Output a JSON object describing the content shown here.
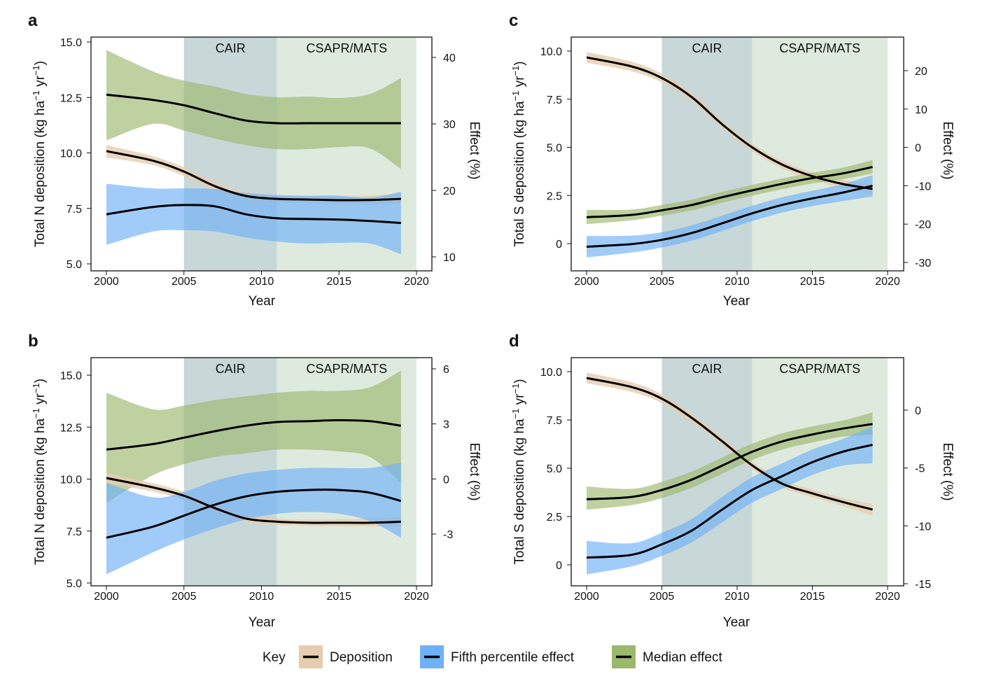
{
  "colors": {
    "deposition": "#e6cdb0",
    "fifth_percentile": "#6fb1f7",
    "median": "#9cb86e",
    "cair_region": "#c8d8d8",
    "csapr_region": "#dfeadf",
    "line": "#000000"
  },
  "legend": {
    "title": "Key",
    "items": [
      {
        "label": "Deposition",
        "key": "deposition"
      },
      {
        "label": "Fifth percentile effect",
        "key": "fifth_percentile"
      },
      {
        "label": "Median effect",
        "key": "median"
      }
    ]
  },
  "chart_data": [
    {
      "panel": "a",
      "type": "line",
      "xlabel": "Year",
      "ylabel_parts": [
        "Total N deposition (kg ha",
        "−1",
        " yr",
        "−1",
        ")"
      ],
      "y2label": "Effect (%)",
      "xlim": [
        2000,
        2020
      ],
      "ylim": [
        5,
        15
      ],
      "y2lim": [
        10,
        40
      ],
      "xticks": [
        "2000",
        "2005",
        "2010",
        "2015",
        "2020"
      ],
      "yticks": [
        "5.0",
        "7.5",
        "10.0",
        "12.5",
        "15.0"
      ],
      "y2ticks": [
        "10",
        "20",
        "30",
        "40"
      ],
      "regions": [
        {
          "label": "CAIR",
          "from": 2005,
          "to": 2011
        },
        {
          "label": "CSAPR/MATS",
          "from": 2011,
          "to": 2020
        }
      ],
      "x": [
        2000,
        2003,
        2005,
        2007,
        2009,
        2011,
        2013,
        2015,
        2017,
        2019
      ],
      "series": [
        {
          "key": "median",
          "axis": "right",
          "y": [
            34.4,
            33.6,
            32.8,
            31.6,
            30.5,
            30.1,
            30.1,
            30.1,
            30.1,
            30.1
          ],
          "lower": [
            27.5,
            30.0,
            29.0,
            27.8,
            26.8,
            26.2,
            26.2,
            26.5,
            26.3,
            23.2
          ],
          "upper": [
            41.1,
            37.9,
            36.5,
            35.6,
            34.5,
            34.0,
            34.1,
            33.9,
            34.5,
            36.9
          ]
        },
        {
          "key": "deposition",
          "axis": "left",
          "y": [
            10.08,
            9.65,
            9.16,
            8.5,
            8.06,
            7.93,
            7.9,
            7.87,
            7.88,
            7.93
          ],
          "lower": [
            9.8,
            9.45,
            8.96,
            8.3,
            7.88,
            7.78,
            7.75,
            7.7,
            7.68,
            7.72
          ],
          "upper": [
            10.35,
            9.85,
            9.36,
            8.7,
            8.24,
            8.08,
            8.05,
            8.04,
            8.08,
            8.18
          ]
        },
        {
          "key": "fifth_percentile",
          "axis": "right",
          "y": [
            16.4,
            17.5,
            17.8,
            17.6,
            16.4,
            15.8,
            15.7,
            15.6,
            15.4,
            15.1
          ],
          "lower": [
            11.8,
            13.8,
            14.0,
            13.8,
            12.9,
            12.3,
            12.0,
            12.1,
            12.0,
            10.4
          ],
          "upper": [
            21.0,
            20.3,
            20.3,
            20.2,
            19.6,
            19.3,
            19.2,
            19.2,
            18.9,
            19.8
          ]
        }
      ]
    },
    {
      "panel": "b",
      "type": "line",
      "xlabel": "Year",
      "ylabel_parts": [
        "Total N deposition (kg ha",
        "−1",
        " yr",
        "−1",
        ")"
      ],
      "y2label": "Effect (%)",
      "xlim": [
        2000,
        2020
      ],
      "ylim": [
        5,
        15
      ],
      "y2lim": [
        -3,
        6
      ],
      "xticks": [
        "2000",
        "2005",
        "2010",
        "2015",
        "2020"
      ],
      "yticks": [
        "5.0",
        "7.5",
        "10.0",
        "12.5",
        "15.0"
      ],
      "y2ticks": [
        "-3",
        "0",
        "3",
        "6"
      ],
      "regions": [
        {
          "label": "CAIR",
          "from": 2005,
          "to": 2011
        },
        {
          "label": "CSAPR/MATS",
          "from": 2011,
          "to": 2020
        }
      ],
      "x": [
        2000,
        2003,
        2005,
        2007,
        2009,
        2011,
        2013,
        2015,
        2017,
        2019
      ],
      "series": [
        {
          "key": "median",
          "axis": "right",
          "y": [
            1.6,
            1.9,
            2.25,
            2.6,
            2.9,
            3.1,
            3.15,
            3.2,
            3.15,
            2.9
          ],
          "lower": [
            -1.3,
            0.2,
            0.8,
            1.2,
            1.4,
            1.6,
            1.6,
            1.5,
            1.2,
            -0.2
          ],
          "upper": [
            4.7,
            3.8,
            4.0,
            4.3,
            4.5,
            4.7,
            4.8,
            4.8,
            5.0,
            5.9
          ]
        },
        {
          "key": "deposition",
          "axis": "left",
          "y": [
            10.05,
            9.6,
            9.2,
            8.6,
            8.1,
            7.95,
            7.9,
            7.9,
            7.9,
            7.95
          ],
          "lower": [
            9.8,
            9.4,
            9.0,
            8.4,
            7.93,
            7.8,
            7.75,
            7.73,
            7.72,
            7.72
          ],
          "upper": [
            10.3,
            9.8,
            9.4,
            8.8,
            8.27,
            8.1,
            8.05,
            8.07,
            8.1,
            8.2
          ]
        },
        {
          "key": "fifth_percentile",
          "axis": "right",
          "y": [
            -3.2,
            -2.6,
            -2.0,
            -1.4,
            -0.95,
            -0.7,
            -0.6,
            -0.6,
            -0.75,
            -1.2
          ],
          "lower": [
            -5.2,
            -4.0,
            -3.3,
            -2.7,
            -2.2,
            -1.9,
            -1.8,
            -1.9,
            -2.3,
            -3.2
          ],
          "upper": [
            -0.2,
            -1.0,
            -0.7,
            -0.1,
            0.3,
            0.5,
            0.6,
            0.6,
            0.6,
            0.9
          ]
        }
      ]
    },
    {
      "panel": "c",
      "type": "line",
      "xlabel": "Year",
      "ylabel_parts": [
        "Total S deposition (kg ha",
        "−1",
        " yr",
        "−1",
        ")"
      ],
      "y2label": "Effect (%)",
      "xlim": [
        2000,
        2020
      ],
      "ylim": [
        0,
        10
      ],
      "y2lim": [
        -30,
        20
      ],
      "xticks": [
        "2000",
        "2005",
        "2010",
        "2015",
        "2020"
      ],
      "yticks": [
        "0",
        "2.5",
        "5.0",
        "7.5",
        "10.0"
      ],
      "y2ticks": [
        "-30",
        "-20",
        "-10",
        "0",
        "10",
        "20"
      ],
      "regions": [
        {
          "label": "CAIR",
          "from": 2005,
          "to": 2011
        },
        {
          "label": "CSAPR/MATS",
          "from": 2011,
          "to": 2020
        }
      ],
      "x": [
        2000,
        2003,
        2005,
        2007,
        2009,
        2011,
        2013,
        2015,
        2017,
        2019
      ],
      "series": [
        {
          "key": "deposition",
          "axis": "left",
          "y": [
            9.67,
            9.2,
            8.6,
            7.6,
            6.2,
            5.0,
            4.1,
            3.5,
            3.1,
            2.84
          ],
          "lower": [
            9.4,
            8.95,
            8.37,
            7.38,
            6.0,
            4.8,
            3.9,
            3.3,
            2.88,
            2.55
          ],
          "upper": [
            9.95,
            9.45,
            8.83,
            7.82,
            6.4,
            5.2,
            4.3,
            3.7,
            3.32,
            3.1
          ]
        },
        {
          "key": "median",
          "axis": "right",
          "y": [
            -18.2,
            -17.6,
            -16.4,
            -15.0,
            -13.0,
            -11.2,
            -9.5,
            -8.0,
            -6.8,
            -5.1
          ],
          "lower": [
            -20.0,
            -19.0,
            -17.8,
            -16.4,
            -14.4,
            -12.6,
            -10.9,
            -9.4,
            -8.3,
            -6.8
          ],
          "upper": [
            -16.3,
            -16.2,
            -15.0,
            -13.6,
            -11.6,
            -9.8,
            -8.1,
            -6.6,
            -5.3,
            -3.3
          ]
        },
        {
          "key": "fifth_percentile",
          "axis": "right",
          "y": [
            -25.9,
            -25.2,
            -24.1,
            -22.3,
            -19.8,
            -17.2,
            -15.0,
            -13.3,
            -11.8,
            -10.0
          ],
          "lower": [
            -28.7,
            -27.4,
            -26.1,
            -24.3,
            -21.8,
            -19.2,
            -17.0,
            -15.3,
            -14.0,
            -12.8
          ],
          "upper": [
            -23.1,
            -23.0,
            -22.1,
            -20.3,
            -17.8,
            -15.2,
            -13.0,
            -11.3,
            -9.6,
            -7.2
          ]
        }
      ]
    },
    {
      "panel": "d",
      "type": "line",
      "xlabel": "Year",
      "ylabel_parts": [
        "Total S deposition (kg ha",
        "−1",
        " yr",
        "−1",
        ")"
      ],
      "y2label": "Effect (%)",
      "xlim": [
        2000,
        2020
      ],
      "ylim": [
        0,
        10
      ],
      "y2lim": [
        -15,
        0
      ],
      "xticks": [
        "2000",
        "2005",
        "2010",
        "2015",
        "2020"
      ],
      "yticks": [
        "0",
        "2.5",
        "5.0",
        "7.5",
        "10.0"
      ],
      "y2ticks": [
        "-15",
        "-10",
        "-5",
        "0"
      ],
      "regions": [
        {
          "label": "CAIR",
          "from": 2005,
          "to": 2011
        },
        {
          "label": "CSAPR/MATS",
          "from": 2011,
          "to": 2020
        }
      ],
      "x": [
        2000,
        2003,
        2005,
        2007,
        2009,
        2011,
        2013,
        2015,
        2017,
        2019
      ],
      "series": [
        {
          "key": "deposition",
          "axis": "left",
          "y": [
            9.67,
            9.2,
            8.6,
            7.6,
            6.4,
            5.15,
            4.2,
            3.7,
            3.26,
            2.86
          ],
          "lower": [
            9.4,
            8.95,
            8.37,
            7.38,
            6.2,
            4.95,
            4.0,
            3.5,
            3.05,
            2.55
          ],
          "upper": [
            9.95,
            9.45,
            8.83,
            7.82,
            6.6,
            5.35,
            4.4,
            3.9,
            3.47,
            3.15
          ]
        },
        {
          "key": "median",
          "axis": "right",
          "y": [
            -7.7,
            -7.5,
            -6.9,
            -6.0,
            -4.8,
            -3.6,
            -2.7,
            -2.1,
            -1.6,
            -1.2
          ],
          "lower": [
            -8.6,
            -8.2,
            -7.6,
            -6.7,
            -5.5,
            -4.3,
            -3.4,
            -2.8,
            -2.3,
            -2.1
          ],
          "upper": [
            -6.6,
            -6.8,
            -6.2,
            -5.3,
            -4.1,
            -2.9,
            -2.0,
            -1.4,
            -0.9,
            -0.2
          ]
        },
        {
          "key": "fifth_percentile",
          "axis": "right",
          "y": [
            -12.75,
            -12.5,
            -11.6,
            -10.4,
            -8.6,
            -6.9,
            -5.7,
            -4.5,
            -3.6,
            -3.0
          ],
          "lower": [
            -14.2,
            -13.5,
            -12.6,
            -11.4,
            -9.7,
            -8.0,
            -6.8,
            -5.6,
            -4.8,
            -4.6
          ],
          "upper": [
            -11.3,
            -11.5,
            -10.6,
            -9.4,
            -7.5,
            -5.8,
            -4.6,
            -3.4,
            -2.5,
            -1.4
          ]
        }
      ]
    }
  ]
}
